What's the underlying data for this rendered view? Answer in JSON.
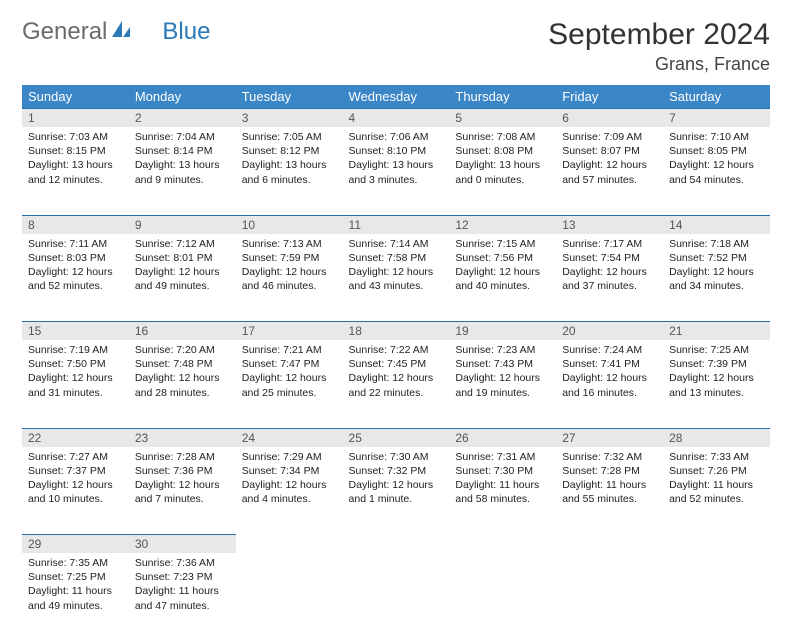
{
  "brand": {
    "part1": "General",
    "part2": "Blue"
  },
  "title": "September 2024",
  "location": "Grans, France",
  "colors": {
    "header_bg": "#3b86c6",
    "header_text": "#ffffff",
    "daynum_bg": "#e8e8e8",
    "row_border": "#2a6ea8",
    "logo_gray": "#6b6b6b",
    "logo_blue": "#2a7ab8"
  },
  "weekdays": [
    "Sunday",
    "Monday",
    "Tuesday",
    "Wednesday",
    "Thursday",
    "Friday",
    "Saturday"
  ],
  "weeks": [
    [
      {
        "day": "1",
        "sunrise": "7:03 AM",
        "sunset": "8:15 PM",
        "daylight": "13 hours and 12 minutes."
      },
      {
        "day": "2",
        "sunrise": "7:04 AM",
        "sunset": "8:14 PM",
        "daylight": "13 hours and 9 minutes."
      },
      {
        "day": "3",
        "sunrise": "7:05 AM",
        "sunset": "8:12 PM",
        "daylight": "13 hours and 6 minutes."
      },
      {
        "day": "4",
        "sunrise": "7:06 AM",
        "sunset": "8:10 PM",
        "daylight": "13 hours and 3 minutes."
      },
      {
        "day": "5",
        "sunrise": "7:08 AM",
        "sunset": "8:08 PM",
        "daylight": "13 hours and 0 minutes."
      },
      {
        "day": "6",
        "sunrise": "7:09 AM",
        "sunset": "8:07 PM",
        "daylight": "12 hours and 57 minutes."
      },
      {
        "day": "7",
        "sunrise": "7:10 AM",
        "sunset": "8:05 PM",
        "daylight": "12 hours and 54 minutes."
      }
    ],
    [
      {
        "day": "8",
        "sunrise": "7:11 AM",
        "sunset": "8:03 PM",
        "daylight": "12 hours and 52 minutes."
      },
      {
        "day": "9",
        "sunrise": "7:12 AM",
        "sunset": "8:01 PM",
        "daylight": "12 hours and 49 minutes."
      },
      {
        "day": "10",
        "sunrise": "7:13 AM",
        "sunset": "7:59 PM",
        "daylight": "12 hours and 46 minutes."
      },
      {
        "day": "11",
        "sunrise": "7:14 AM",
        "sunset": "7:58 PM",
        "daylight": "12 hours and 43 minutes."
      },
      {
        "day": "12",
        "sunrise": "7:15 AM",
        "sunset": "7:56 PM",
        "daylight": "12 hours and 40 minutes."
      },
      {
        "day": "13",
        "sunrise": "7:17 AM",
        "sunset": "7:54 PM",
        "daylight": "12 hours and 37 minutes."
      },
      {
        "day": "14",
        "sunrise": "7:18 AM",
        "sunset": "7:52 PM",
        "daylight": "12 hours and 34 minutes."
      }
    ],
    [
      {
        "day": "15",
        "sunrise": "7:19 AM",
        "sunset": "7:50 PM",
        "daylight": "12 hours and 31 minutes."
      },
      {
        "day": "16",
        "sunrise": "7:20 AM",
        "sunset": "7:48 PM",
        "daylight": "12 hours and 28 minutes."
      },
      {
        "day": "17",
        "sunrise": "7:21 AM",
        "sunset": "7:47 PM",
        "daylight": "12 hours and 25 minutes."
      },
      {
        "day": "18",
        "sunrise": "7:22 AM",
        "sunset": "7:45 PM",
        "daylight": "12 hours and 22 minutes."
      },
      {
        "day": "19",
        "sunrise": "7:23 AM",
        "sunset": "7:43 PM",
        "daylight": "12 hours and 19 minutes."
      },
      {
        "day": "20",
        "sunrise": "7:24 AM",
        "sunset": "7:41 PM",
        "daylight": "12 hours and 16 minutes."
      },
      {
        "day": "21",
        "sunrise": "7:25 AM",
        "sunset": "7:39 PM",
        "daylight": "12 hours and 13 minutes."
      }
    ],
    [
      {
        "day": "22",
        "sunrise": "7:27 AM",
        "sunset": "7:37 PM",
        "daylight": "12 hours and 10 minutes."
      },
      {
        "day": "23",
        "sunrise": "7:28 AM",
        "sunset": "7:36 PM",
        "daylight": "12 hours and 7 minutes."
      },
      {
        "day": "24",
        "sunrise": "7:29 AM",
        "sunset": "7:34 PM",
        "daylight": "12 hours and 4 minutes."
      },
      {
        "day": "25",
        "sunrise": "7:30 AM",
        "sunset": "7:32 PM",
        "daylight": "12 hours and 1 minute."
      },
      {
        "day": "26",
        "sunrise": "7:31 AM",
        "sunset": "7:30 PM",
        "daylight": "11 hours and 58 minutes."
      },
      {
        "day": "27",
        "sunrise": "7:32 AM",
        "sunset": "7:28 PM",
        "daylight": "11 hours and 55 minutes."
      },
      {
        "day": "28",
        "sunrise": "7:33 AM",
        "sunset": "7:26 PM",
        "daylight": "11 hours and 52 minutes."
      }
    ],
    [
      {
        "day": "29",
        "sunrise": "7:35 AM",
        "sunset": "7:25 PM",
        "daylight": "11 hours and 49 minutes."
      },
      {
        "day": "30",
        "sunrise": "7:36 AM",
        "sunset": "7:23 PM",
        "daylight": "11 hours and 47 minutes."
      },
      null,
      null,
      null,
      null,
      null
    ]
  ],
  "labels": {
    "sunrise": "Sunrise: ",
    "sunset": "Sunset: ",
    "daylight": "Daylight: "
  }
}
